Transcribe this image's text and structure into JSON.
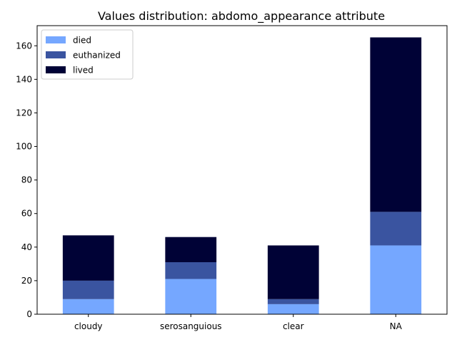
{
  "chart_data": {
    "type": "bar",
    "stacked": true,
    "title": "Values distribution: abdomo_appearance attribute",
    "xlabel": "",
    "ylabel": "",
    "categories": [
      "cloudy",
      "serosanguious",
      "clear",
      "NA"
    ],
    "series": [
      {
        "name": "died",
        "color": "#75a7ff",
        "values": [
          9,
          21,
          6,
          41
        ]
      },
      {
        "name": "euthanized",
        "color": "#3a54a0",
        "values": [
          11,
          10,
          3,
          20
        ]
      },
      {
        "name": "lived",
        "color": "#000236",
        "values": [
          27,
          15,
          32,
          104
        ]
      }
    ],
    "ylim": [
      0,
      172
    ],
    "yticks": [
      0,
      20,
      40,
      60,
      80,
      100,
      120,
      140,
      160
    ],
    "grid": false,
    "legend_position": "top-left"
  }
}
